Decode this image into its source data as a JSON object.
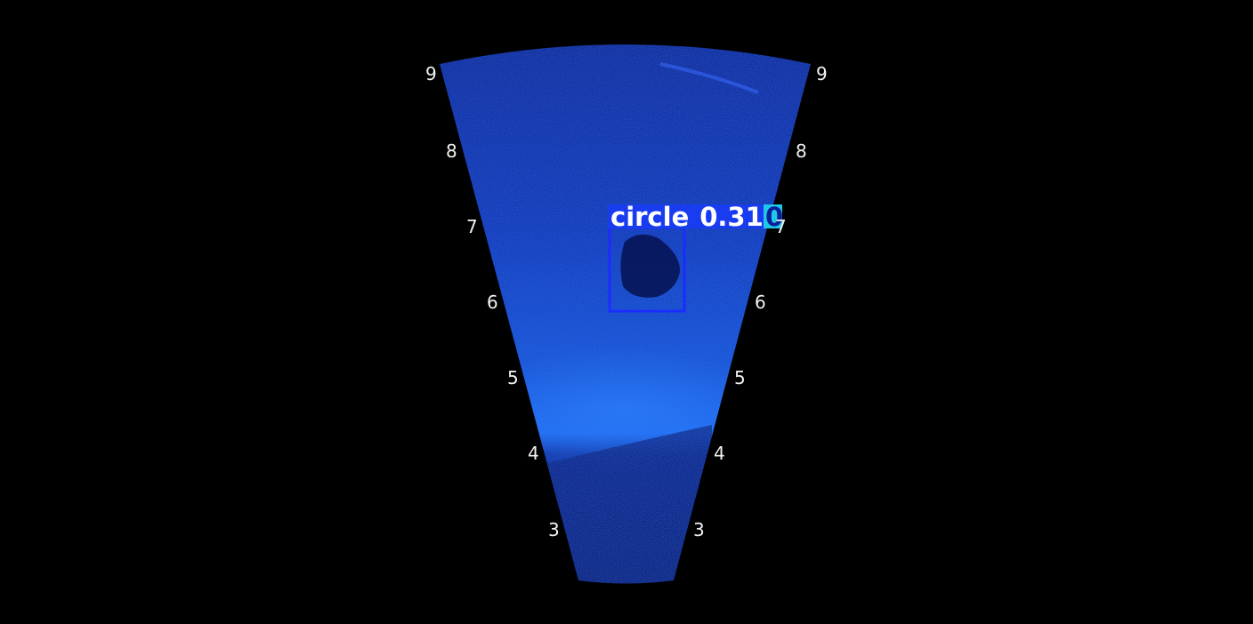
{
  "sonar": {
    "range_labels_left": [
      "9",
      "8",
      "7",
      "6",
      "5",
      "4",
      "3"
    ],
    "range_labels_right": [
      "9",
      "8",
      "7",
      "6",
      "5",
      "4",
      "3"
    ],
    "colors": {
      "background": "#000000",
      "fan_dark": "#06135c",
      "fan_mid": "#0a2fb0",
      "fan_bright": "#1563e8",
      "box": "#1a2cff",
      "label_bg": "#1a3cf0",
      "extra_bg": "#1ec8e6"
    }
  },
  "detection": {
    "label": "circle",
    "confidence": "0.31",
    "extra_char": "0"
  }
}
